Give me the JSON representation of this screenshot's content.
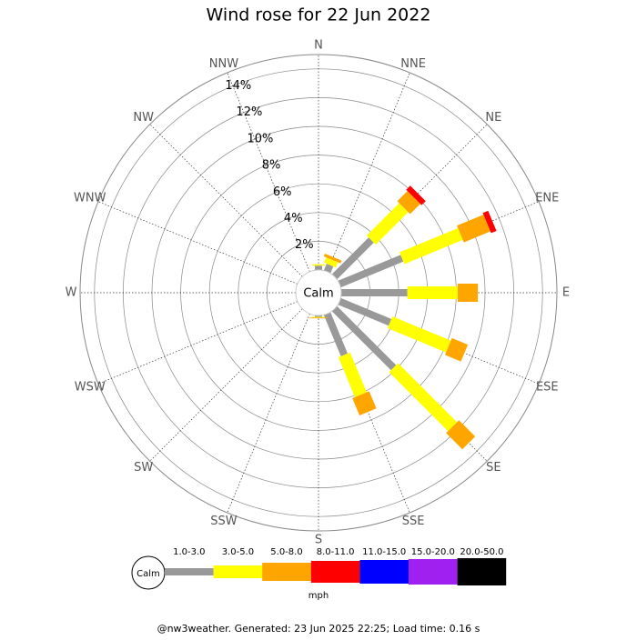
{
  "chart_data": {
    "type": "windrose",
    "title": "Wind rose for 22 Jun 2022",
    "categories": [
      "N",
      "NNE",
      "NE",
      "ENE",
      "E",
      "ESE",
      "SE",
      "SSE",
      "S",
      "SSW",
      "SW",
      "WSW",
      "W",
      "WNW",
      "NW",
      "NNW"
    ],
    "calm_label": "Calm",
    "rlim": [
      0,
      15
    ],
    "rticks": [
      {
        "value": 2,
        "label": "2%"
      },
      {
        "value": 4,
        "label": "4%"
      },
      {
        "value": 6,
        "label": "6%"
      },
      {
        "value": 8,
        "label": "8%"
      },
      {
        "value": 10,
        "label": "10%"
      },
      {
        "value": 12,
        "label": "12%"
      },
      {
        "value": 14,
        "label": "14%"
      }
    ],
    "series": [
      {
        "name": "1.0-3.0",
        "color": "#999999",
        "values": [
          0.3,
          0.5,
          3.6,
          4.7,
          4.6,
          3.8,
          5.8,
          3.1,
          0.1,
          0,
          0,
          0,
          0,
          0,
          0,
          0
        ]
      },
      {
        "name": "3.0-5.0",
        "color": "#ffff00",
        "values": [
          0.1,
          0.4,
          3.2,
          4.4,
          3.5,
          4.4,
          5.8,
          3.0,
          0.05,
          0,
          0,
          0,
          0,
          0,
          0,
          0
        ]
      },
      {
        "name": "5.0-8.0",
        "color": "#ffa500",
        "values": [
          0,
          0.2,
          1.0,
          2.0,
          1.4,
          1.2,
          1.6,
          1.3,
          0.05,
          0,
          0,
          0,
          0,
          0,
          0,
          0
        ]
      },
      {
        "name": "8.0-11.0",
        "color": "#ff0000",
        "values": [
          0,
          0,
          0.4,
          0.4,
          0,
          0,
          0,
          0,
          0,
          0,
          0,
          0,
          0,
          0,
          0,
          0
        ]
      },
      {
        "name": "11.0-15.0",
        "color": "#0000ff",
        "values": [
          0,
          0,
          0,
          0,
          0,
          0,
          0,
          0,
          0,
          0,
          0,
          0,
          0,
          0,
          0,
          0
        ]
      },
      {
        "name": "15.0-20.0",
        "color": "#a020f0",
        "values": [
          0,
          0,
          0,
          0,
          0,
          0,
          0,
          0,
          0,
          0,
          0,
          0,
          0,
          0,
          0,
          0
        ]
      },
      {
        "name": "20.0-50.0",
        "color": "#000000",
        "values": [
          0,
          0,
          0,
          0,
          0,
          0,
          0,
          0,
          0,
          0,
          0,
          0,
          0,
          0,
          0,
          0
        ]
      }
    ],
    "unit_label": "mph",
    "footer": "@nw3weather. Generated: 23 Jun 2025 22:25; Load time: 0.16 s"
  }
}
